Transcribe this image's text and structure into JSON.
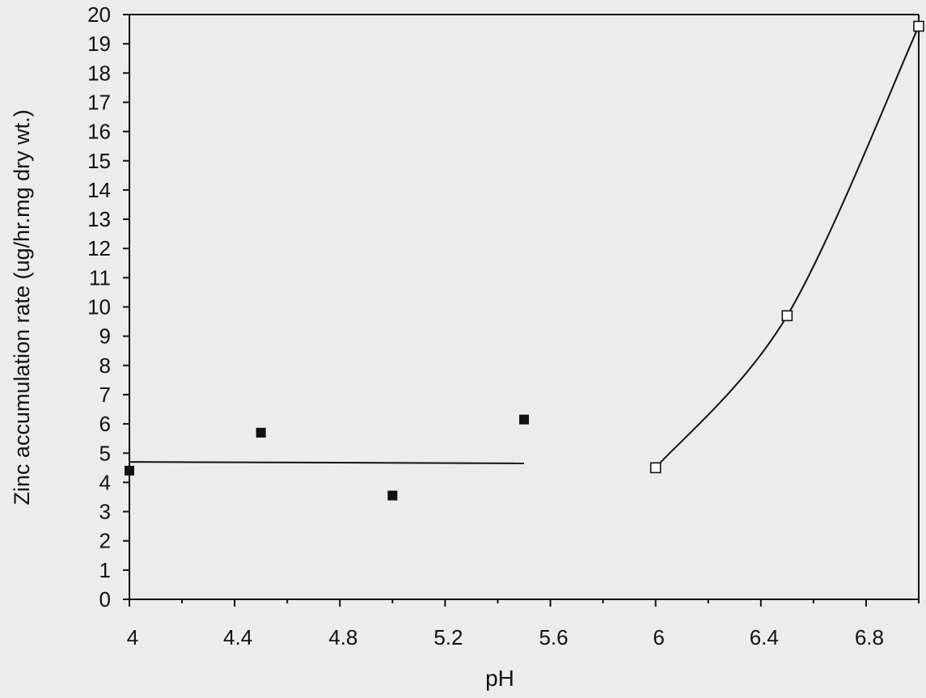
{
  "chart_data": {
    "type": "scatter",
    "title": "",
    "xlabel": "pH",
    "ylabel": "Zinc accumulation rate (ug/hr.mg dry wt.)",
    "xlim": [
      4,
      7
    ],
    "ylim": [
      0,
      20
    ],
    "x_ticks": [
      "4",
      "4.4",
      "4.8",
      "5.2",
      "5.6",
      "6",
      "6.4",
      "6.8"
    ],
    "y_ticks": [
      "0",
      "1",
      "2",
      "3",
      "4",
      "5",
      "6",
      "7",
      "8",
      "9",
      "10",
      "11",
      "12",
      "13",
      "14",
      "15",
      "16",
      "17",
      "18",
      "19",
      "20"
    ],
    "grid": false,
    "series": [
      {
        "marker": "filled-square",
        "color": "#111111",
        "x": [
          4.0,
          4.5,
          5.0,
          5.5
        ],
        "y": [
          4.4,
          5.7,
          3.55,
          6.15
        ],
        "fit_line": {
          "x": [
            4.0,
            5.5
          ],
          "y": [
            4.7,
            4.65
          ]
        }
      },
      {
        "marker": "open-square",
        "color": "#111111",
        "x": [
          6.0,
          6.5,
          7.0
        ],
        "y": [
          4.5,
          9.7,
          19.6
        ],
        "connected": "smooth"
      }
    ]
  }
}
